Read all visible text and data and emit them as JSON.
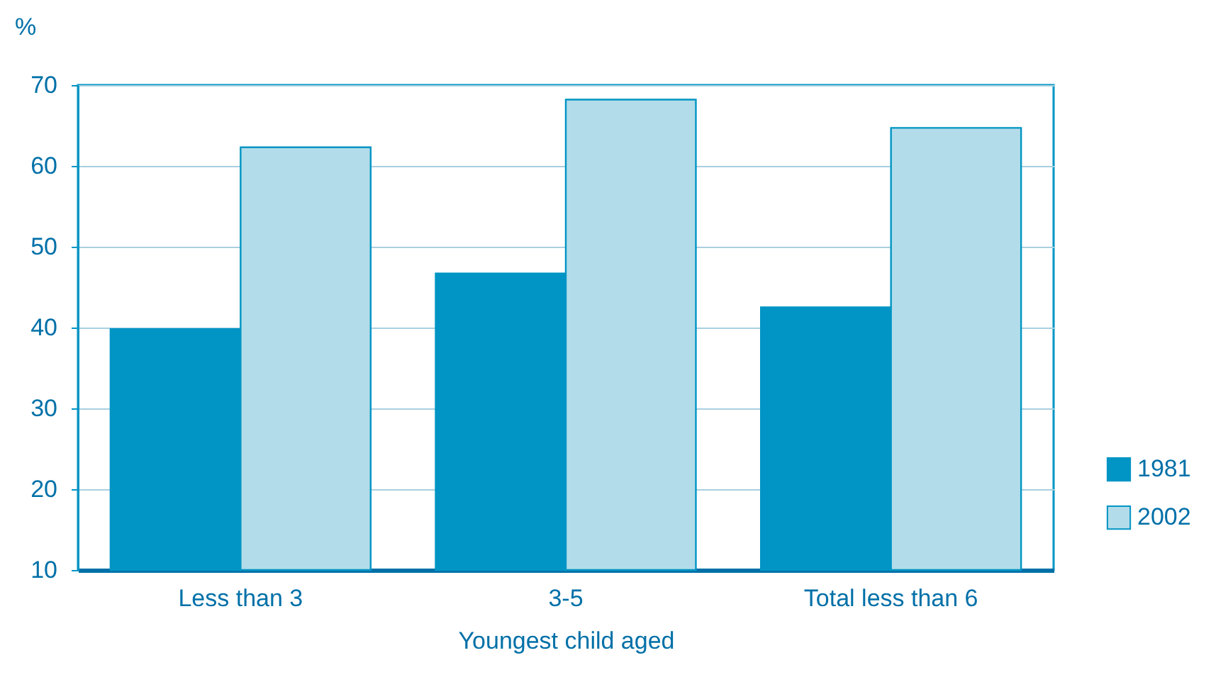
{
  "chart_data": {
    "type": "bar",
    "xlabel": "Youngest child aged",
    "ylabel": "%",
    "categories": [
      "Less than 3",
      "3-5",
      "Total less than 6"
    ],
    "series": [
      {
        "name": "1981",
        "color": "#0095c4",
        "values": [
          39.8,
          46.7,
          42.5
        ]
      },
      {
        "name": "2002",
        "color": "#b3dcea",
        "values": [
          62.3,
          68.2,
          64.7
        ]
      }
    ],
    "ylim": [
      10,
      70
    ],
    "yticks": [
      10,
      20,
      30,
      40,
      50,
      60,
      70
    ],
    "grid": "y",
    "legend": "bottom right"
  }
}
